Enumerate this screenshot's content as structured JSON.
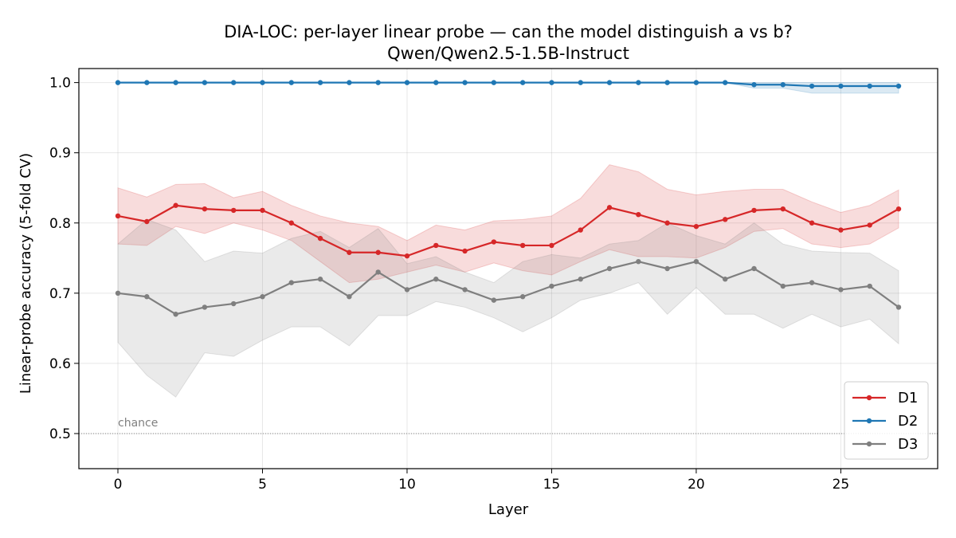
{
  "chart_data": {
    "type": "line",
    "title": "DIA-LOC: per-layer linear probe — can the model distinguish a vs b?",
    "subtitle": "Qwen/Qwen2.5-1.5B-Instruct",
    "xlabel": "Layer",
    "ylabel": "Linear-probe accuracy (5-fold CV)",
    "xlim": [
      -1.35,
      28.35
    ],
    "ylim": [
      0.45,
      1.02
    ],
    "xticks": [
      0,
      5,
      10,
      15,
      20,
      25
    ],
    "yticks": [
      0.5,
      0.6,
      0.7,
      0.8,
      0.9,
      1.0
    ],
    "ytick_labels": [
      "0.5",
      "0.6",
      "0.7",
      "0.8",
      "0.9",
      "1.0"
    ],
    "grid": true,
    "legend_position": "bottom-right",
    "x": [
      0,
      1,
      2,
      3,
      4,
      5,
      6,
      7,
      8,
      9,
      10,
      11,
      12,
      13,
      14,
      15,
      16,
      17,
      18,
      19,
      20,
      21,
      22,
      23,
      24,
      25,
      26,
      27
    ],
    "series": [
      {
        "name": "D1",
        "color": "#d62728",
        "values": [
          0.81,
          0.802,
          0.825,
          0.82,
          0.818,
          0.818,
          0.8,
          0.778,
          0.758,
          0.758,
          0.753,
          0.768,
          0.76,
          0.773,
          0.768,
          0.768,
          0.79,
          0.822,
          0.812,
          0.8,
          0.795,
          0.805,
          0.818,
          0.82,
          0.8,
          0.79,
          0.797,
          0.82
        ],
        "upper": [
          0.85,
          0.837,
          0.855,
          0.856,
          0.836,
          0.845,
          0.825,
          0.81,
          0.8,
          0.795,
          0.775,
          0.797,
          0.79,
          0.803,
          0.805,
          0.81,
          0.835,
          0.883,
          0.873,
          0.848,
          0.84,
          0.845,
          0.848,
          0.848,
          0.83,
          0.815,
          0.825,
          0.847
        ],
        "lower": [
          0.77,
          0.768,
          0.795,
          0.785,
          0.8,
          0.79,
          0.775,
          0.745,
          0.715,
          0.72,
          0.73,
          0.74,
          0.73,
          0.743,
          0.732,
          0.726,
          0.745,
          0.762,
          0.752,
          0.752,
          0.75,
          0.765,
          0.788,
          0.792,
          0.77,
          0.765,
          0.77,
          0.793
        ]
      },
      {
        "name": "D2",
        "color": "#1f77b4",
        "values": [
          1.0,
          1.0,
          1.0,
          1.0,
          1.0,
          1.0,
          1.0,
          1.0,
          1.0,
          1.0,
          1.0,
          1.0,
          1.0,
          1.0,
          1.0,
          1.0,
          1.0,
          1.0,
          1.0,
          1.0,
          1.0,
          1.0,
          0.997,
          0.997,
          0.995,
          0.995,
          0.995,
          0.995
        ],
        "upper": [
          1.0,
          1.0,
          1.0,
          1.0,
          1.0,
          1.0,
          1.0,
          1.0,
          1.0,
          1.0,
          1.0,
          1.0,
          1.0,
          1.0,
          1.0,
          1.0,
          1.0,
          1.0,
          1.0,
          1.0,
          1.0,
          1.0,
          1.0,
          1.0,
          1.0,
          1.0,
          1.0,
          1.0
        ],
        "lower": [
          1.0,
          1.0,
          1.0,
          1.0,
          1.0,
          1.0,
          1.0,
          1.0,
          1.0,
          1.0,
          1.0,
          1.0,
          1.0,
          1.0,
          1.0,
          1.0,
          1.0,
          1.0,
          1.0,
          1.0,
          1.0,
          1.0,
          0.992,
          0.992,
          0.985,
          0.985,
          0.985,
          0.985
        ]
      },
      {
        "name": "D3",
        "color": "#7f7f7f",
        "values": [
          0.7,
          0.695,
          0.67,
          0.68,
          0.685,
          0.695,
          0.715,
          0.72,
          0.695,
          0.73,
          0.705,
          0.72,
          0.705,
          0.69,
          0.695,
          0.71,
          0.72,
          0.735,
          0.745,
          0.735,
          0.745,
          0.72,
          0.735,
          0.71,
          0.715,
          0.705,
          0.71,
          0.68
        ],
        "upper": [
          0.77,
          0.805,
          0.79,
          0.745,
          0.76,
          0.757,
          0.778,
          0.788,
          0.765,
          0.792,
          0.742,
          0.752,
          0.73,
          0.715,
          0.745,
          0.755,
          0.75,
          0.77,
          0.775,
          0.8,
          0.782,
          0.77,
          0.8,
          0.77,
          0.76,
          0.758,
          0.757,
          0.732
        ],
        "lower": [
          0.63,
          0.583,
          0.552,
          0.615,
          0.61,
          0.633,
          0.652,
          0.652,
          0.625,
          0.668,
          0.668,
          0.688,
          0.68,
          0.665,
          0.645,
          0.665,
          0.69,
          0.7,
          0.715,
          0.67,
          0.708,
          0.67,
          0.67,
          0.65,
          0.67,
          0.652,
          0.663,
          0.628
        ]
      }
    ],
    "reference_line": {
      "y": 0.5,
      "label": "chance",
      "color": "#808080"
    }
  }
}
